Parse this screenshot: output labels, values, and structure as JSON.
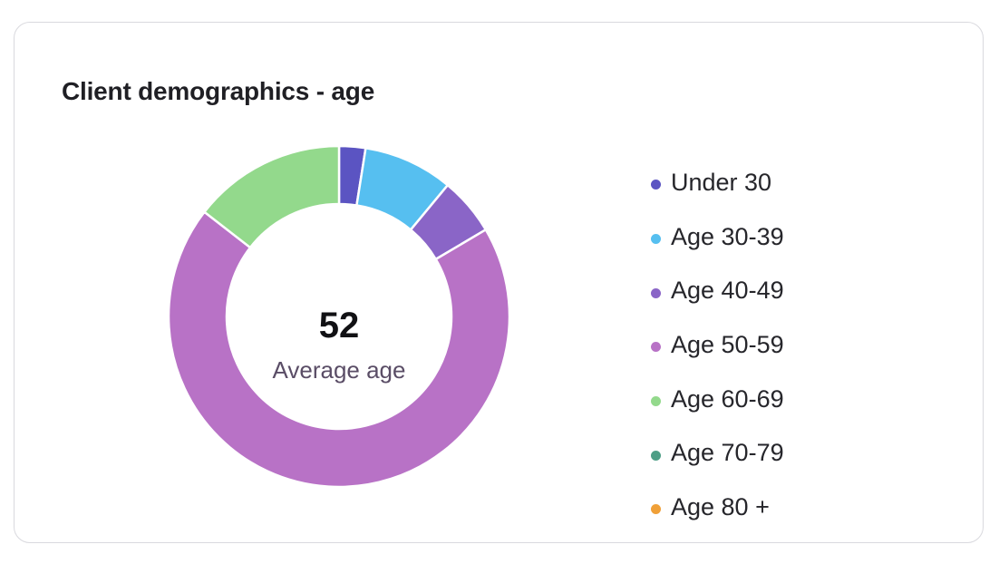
{
  "card": {
    "title": "Client demographics - age"
  },
  "center": {
    "value": "52",
    "label": "Average age"
  },
  "chart_data": {
    "type": "pie",
    "title": "Client demographics - age",
    "donut": true,
    "legend_position": "right",
    "categories": [
      "Under 30",
      "Age 30-39",
      "Age 40-49",
      "Age 50-59",
      "Age 60-69",
      "Age 70-79",
      "Age 80 +"
    ],
    "values": [
      2.5,
      8.5,
      5.5,
      69,
      14.5,
      0,
      0
    ],
    "unit": "percent (estimated)",
    "colors": [
      "#5b54c2",
      "#56bff0",
      "#8a65c7",
      "#b872c6",
      "#93d98c",
      "#4e9e86",
      "#f0a038"
    ]
  }
}
